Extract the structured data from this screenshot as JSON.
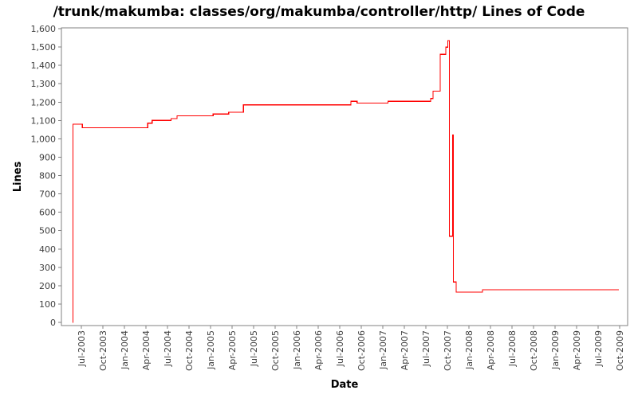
{
  "chart_data": {
    "type": "line",
    "title": "/trunk/makumba: classes/org/makumba/controller/http/ Lines of Code",
    "xlabel": "Date",
    "ylabel": "Lines",
    "legend_position": "none",
    "grid": false,
    "background_color": "#ffffff",
    "frame_color": "#808080",
    "tick_label_color": "#404040",
    "series": [
      {
        "name": "Lines of Code",
        "color": "#ff0000",
        "interpolation": "step-after",
        "points": [
          [
            2003.398,
            0
          ],
          [
            2003.402,
            1080
          ],
          [
            2003.51,
            1060
          ],
          [
            2004.27,
            1085
          ],
          [
            2004.32,
            1100
          ],
          [
            2004.54,
            1110
          ],
          [
            2004.61,
            1125
          ],
          [
            2005.03,
            1135
          ],
          [
            2005.21,
            1145
          ],
          [
            2005.38,
            1185
          ],
          [
            2006.63,
            1205
          ],
          [
            2006.7,
            1195
          ],
          [
            2007.06,
            1205
          ],
          [
            2007.556,
            1220
          ],
          [
            2007.583,
            1260
          ],
          [
            2007.667,
            1460
          ],
          [
            2007.731,
            1500
          ],
          [
            2007.754,
            1535
          ],
          [
            2007.773,
            470
          ],
          [
            2007.81,
            1020
          ],
          [
            2007.819,
            220
          ],
          [
            2007.852,
            165
          ],
          [
            2008.157,
            178
          ],
          [
            2009.74,
            178
          ]
        ]
      }
    ],
    "x_tick_labels": [
      "Jul-2003",
      "Oct-2003",
      "Jan-2004",
      "Apr-2004",
      "Jul-2004",
      "Oct-2004",
      "Jan-2005",
      "Apr-2005",
      "Jul-2005",
      "Oct-2005",
      "Jan-2006",
      "Apr-2006",
      "Jul-2006",
      "Oct-2006",
      "Jan-2007",
      "Apr-2007",
      "Jul-2007",
      "Oct-2007",
      "Jan-2008",
      "Apr-2008",
      "Jul-2008",
      "Oct-2008",
      "Jan-2009",
      "Apr-2009",
      "Jul-2009",
      "Oct-2009"
    ],
    "x_tick_start_year": 2003.5,
    "x_tick_interval_years": 0.25,
    "xlim": [
      2003.268,
      2009.843
    ],
    "ylim": [
      0,
      1600
    ],
    "y_tick_step": 100
  }
}
